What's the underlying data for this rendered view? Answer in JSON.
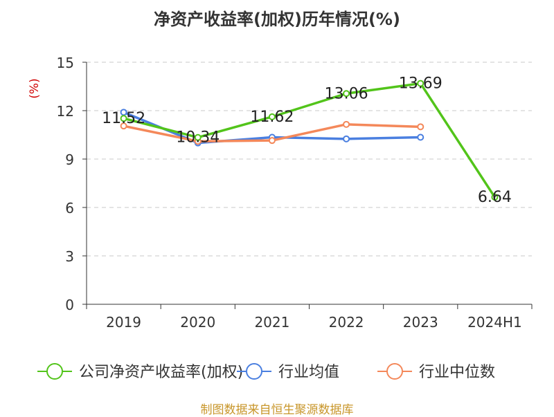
{
  "chart_data": {
    "type": "line",
    "title": "净资产收益率(加权)历年情况(%)",
    "ylabel": "(%)",
    "xlabel": "",
    "categories": [
      "2019",
      "2020",
      "2021",
      "2022",
      "2023",
      "2024H1"
    ],
    "ylim": [
      0,
      15
    ],
    "yticks": [
      0,
      3,
      6,
      9,
      12,
      15
    ],
    "grid": true,
    "legend_position": "bottom",
    "series": [
      {
        "name": "公司净资产收益率(加权)",
        "color": "#52c41a",
        "values": [
          11.52,
          10.34,
          11.62,
          13.06,
          13.69,
          6.64
        ],
        "labels": [
          "11.52",
          "10.34",
          "11.62",
          "13.06",
          "13.69",
          "6.64"
        ]
      },
      {
        "name": "行业均值",
        "color": "#4a7fe0",
        "values": [
          11.9,
          10.0,
          10.35,
          10.25,
          10.35,
          null
        ]
      },
      {
        "name": "行业中位数",
        "color": "#f4885a",
        "values": [
          11.05,
          10.1,
          10.15,
          11.15,
          11.0,
          null
        ]
      }
    ]
  },
  "source_text": "制图数据来自恒生聚源数据库"
}
